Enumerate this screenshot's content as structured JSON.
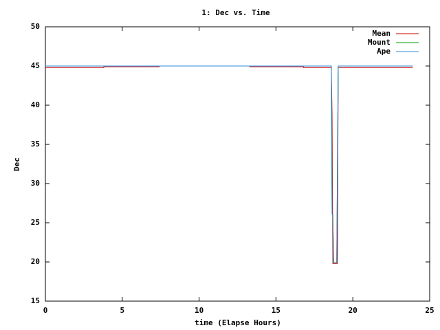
{
  "chart_data": {
    "type": "line",
    "title": "1: Dec vs. Time",
    "xlabel": "time (Elapse Hours)",
    "ylabel": "Dec",
    "x": [
      0,
      3.8,
      3.8,
      7.4,
      7.4,
      13.3,
      13.3,
      16.8,
      16.8,
      18.6,
      18.65,
      18.7,
      18.75,
      18.95,
      19.0,
      19.05,
      23.9
    ],
    "series": [
      {
        "name": "Mean",
        "color": "#c80000",
        "values": [
          44.8,
          44.8,
          44.9,
          44.9,
          45,
          45,
          44.9,
          44.9,
          44.8,
          44.8,
          38.7,
          19.8,
          19.8,
          19.8,
          19.8,
          44.8,
          44.8
        ]
      },
      {
        "name": "Mount",
        "color": "#00a000",
        "values": [
          45,
          45,
          45,
          45,
          45,
          45,
          45,
          45,
          45,
          45,
          26.1,
          26.1,
          19.9,
          19.9,
          32.4,
          45,
          45
        ]
      },
      {
        "name": "Ape",
        "color": "#2e8bde",
        "values": [
          45,
          45,
          45,
          45,
          45,
          45,
          45,
          45,
          45,
          45,
          26.1,
          26.1,
          19.9,
          19.9,
          32.4,
          45,
          45
        ]
      }
    ],
    "xlim": [
      0,
      25
    ],
    "xticks": [
      0,
      5,
      10,
      15,
      20,
      25
    ],
    "ylim": [
      15,
      50
    ],
    "yticks": [
      15,
      20,
      25,
      30,
      35,
      40,
      45,
      50
    ],
    "grid": false,
    "legend": "top-right"
  }
}
